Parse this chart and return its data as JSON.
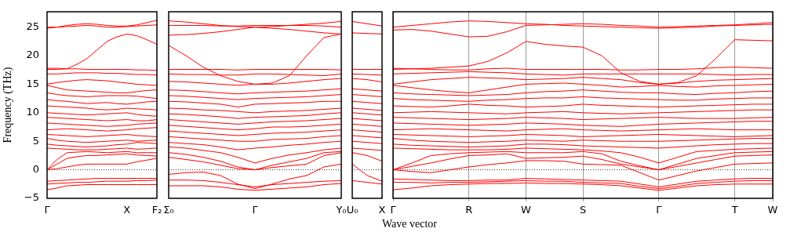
{
  "chart_data": [
    {
      "type": "line",
      "ylabel": "Frequency (THz)",
      "categories": [
        "Γ",
        null,
        null,
        null,
        null,
        null,
        null,
        null,
        "X",
        null,
        null,
        "F₂"
      ],
      "ylim": [
        -5,
        27.7
      ],
      "yticks": [
        {
          "value": -5,
          "label": "−5"
        },
        0,
        5,
        10,
        15,
        20,
        25
      ],
      "marker": "none",
      "ref_lines": [
        {
          "axis": "y",
          "value": 0,
          "line_style": "dotted",
          "color": "#000000"
        }
      ],
      "series": [
        {
          "color": "#ff0000",
          "values": [
            24.8,
            25.0,
            25.3,
            25.5,
            25.6,
            25.5,
            25.3,
            25.2,
            25.2,
            25.4,
            25.8,
            26.2
          ]
        },
        {
          "color": "#ff0000",
          "values": [
            25.0,
            25.0,
            25.1,
            25.2,
            25.3,
            25.2,
            25.0,
            25.0,
            25.1,
            25.2,
            25.3,
            25.4
          ]
        },
        {
          "color": "#ff0000",
          "values": [
            17.6,
            17.6,
            17.7,
            18.5,
            19.5,
            21.0,
            22.5,
            23.3,
            23.8,
            23.5,
            22.8,
            22.0
          ]
        },
        {
          "color": "#ff0000",
          "values": [
            17.8,
            17.8,
            17.7,
            17.7,
            17.6,
            17.6,
            17.6,
            17.6,
            17.6,
            17.5,
            17.5,
            17.4
          ]
        },
        {
          "color": "#ff0000",
          "values": [
            16.8,
            16.8,
            16.9,
            17.0,
            17.0,
            17.0,
            16.9,
            16.9,
            16.8,
            16.7,
            16.7,
            16.6
          ]
        },
        {
          "color": "#ff0000",
          "values": [
            15.0,
            15.3,
            15.5,
            15.7,
            15.8,
            15.7,
            15.6,
            15.4,
            15.2,
            15.0,
            14.9,
            14.8
          ]
        },
        {
          "color": "#ff0000",
          "values": [
            14.8,
            14.4,
            14.0,
            13.9,
            13.8,
            13.7,
            13.6,
            13.5,
            13.5,
            13.7,
            13.9,
            14.0
          ]
        },
        {
          "color": "#ff0000",
          "values": [
            13.5,
            13.2,
            13.0,
            12.9,
            12.8,
            12.9,
            13.0,
            13.0,
            13.0,
            12.9,
            12.7,
            12.5
          ]
        },
        {
          "color": "#ff0000",
          "values": [
            12.3,
            12.1,
            12.0,
            11.8,
            11.6,
            11.7,
            11.8,
            11.6,
            11.5,
            11.7,
            11.9,
            12.0
          ]
        },
        {
          "color": "#ff0000",
          "values": [
            11.2,
            11.1,
            11.0,
            10.9,
            10.8,
            10.6,
            10.5,
            10.6,
            10.8,
            10.7,
            10.6,
            10.5
          ]
        },
        {
          "color": "#ff0000",
          "values": [
            10.0,
            9.9,
            9.8,
            9.7,
            9.6,
            9.7,
            9.8,
            9.9,
            10.0,
            9.7,
            9.5,
            9.4
          ]
        },
        {
          "color": "#ff0000",
          "values": [
            9.2,
            9.1,
            9.0,
            8.9,
            8.8,
            8.7,
            8.6,
            8.7,
            8.8,
            8.6,
            8.6,
            8.8
          ]
        },
        {
          "color": "#ff0000",
          "values": [
            8.2,
            8.1,
            8.0,
            7.9,
            7.8,
            7.7,
            7.6,
            7.7,
            7.8,
            8.0,
            8.1,
            8.2
          ]
        },
        {
          "color": "#ff0000",
          "values": [
            7.0,
            7.1,
            7.2,
            7.1,
            7.0,
            6.9,
            6.8,
            6.9,
            7.0,
            7.2,
            7.3,
            7.4
          ]
        },
        {
          "color": "#ff0000",
          "values": [
            6.2,
            6.1,
            6.0,
            5.9,
            5.8,
            5.9,
            6.0,
            6.1,
            6.2,
            6.0,
            5.9,
            5.8
          ]
        },
        {
          "color": "#ff0000",
          "values": [
            5.5,
            5.2,
            5.0,
            4.9,
            4.8,
            4.9,
            5.0,
            5.1,
            5.2,
            5.0,
            5.1,
            5.2
          ]
        },
        {
          "color": "#ff0000",
          "values": [
            4.5,
            4.3,
            4.2,
            4.1,
            4.0,
            4.1,
            4.2,
            4.4,
            4.5,
            4.8,
            4.7,
            4.6
          ]
        },
        {
          "color": "#ff0000",
          "values": [
            3.8,
            3.7,
            3.6,
            3.5,
            3.5,
            3.5,
            3.6,
            3.7,
            3.8,
            3.6,
            3.7,
            3.8
          ]
        },
        {
          "color": "#ff0000",
          "values": [
            0,
            1.8,
            3.0,
            3.1,
            3.2,
            3.1,
            3.0,
            3.1,
            3.2,
            3.0,
            3.0,
            3.0
          ]
        },
        {
          "color": "#ff0000",
          "values": [
            0,
            1.0,
            2.0,
            2.3,
            2.5,
            2.5,
            2.6,
            2.7,
            2.8,
            2.6,
            2.5,
            2.4
          ]
        },
        {
          "color": "#ff0000",
          "values": [
            0,
            0.2,
            0.5,
            0.8,
            1.0,
            1.0,
            1.0,
            1.0,
            1.0,
            1.4,
            1.7,
            2.0
          ]
        },
        {
          "color": "#ff0000",
          "values": [
            -2.0,
            -1.9,
            -1.8,
            -1.7,
            -1.6,
            -1.5,
            -1.5,
            -1.5,
            -1.5,
            -1.5,
            -1.5,
            -1.5
          ]
        },
        {
          "color": "#ff0000",
          "values": [
            -2.5,
            -2.4,
            -2.3,
            -2.2,
            -2.2,
            -2.1,
            -2.0,
            -2.0,
            -2.0,
            -1.9,
            -1.9,
            -1.8
          ]
        },
        {
          "color": "#ff0000",
          "values": [
            -3.5,
            -3.2,
            -2.8,
            -2.7,
            -2.6,
            -2.6,
            -2.6,
            -2.6,
            -2.6,
            -2.6,
            -2.6,
            -2.6
          ]
        }
      ]
    },
    {
      "type": "line",
      "tick_labels": "x",
      "categories": [
        "Σ₀",
        null,
        null,
        null,
        null,
        "Γ",
        null,
        null,
        null,
        null,
        "Y₀"
      ],
      "ylim": [
        -5,
        27.7
      ],
      "yticks": [
        -5,
        0,
        5,
        10,
        15,
        20,
        25
      ],
      "marker": "none",
      "ref_lines": [
        {
          "axis": "y",
          "value": 0,
          "line_style": "dotted",
          "color": "#000000"
        }
      ],
      "series": [
        {
          "color": "#ff0000",
          "values": [
            26.1,
            25.9,
            25.6,
            25.3,
            25.1,
            25.0,
            25.1,
            25.3,
            25.5,
            25.7,
            26.0
          ]
        },
        {
          "color": "#ff0000",
          "values": [
            25.3,
            25.3,
            25.3,
            25.2,
            25.2,
            25.3,
            25.3,
            25.3,
            25.3,
            25.2,
            25.0
          ]
        },
        {
          "color": "#ff0000",
          "values": [
            23.6,
            23.7,
            23.9,
            24.2,
            24.6,
            25.0,
            24.8,
            24.6,
            24.3,
            24.0,
            23.8
          ]
        },
        {
          "color": "#ff0000",
          "values": [
            21.8,
            20.0,
            18.0,
            16.5,
            15.5,
            15.0,
            15.2,
            16.5,
            20.0,
            23.2,
            23.8
          ]
        },
        {
          "color": "#ff0000",
          "values": [
            17.6,
            17.6,
            17.6,
            17.6,
            17.5,
            17.6,
            17.6,
            17.6,
            17.6,
            17.6,
            17.5
          ]
        },
        {
          "color": "#ff0000",
          "values": [
            16.8,
            16.7,
            16.7,
            16.6,
            16.6,
            16.8,
            16.8,
            16.7,
            16.6,
            16.5,
            16.8
          ]
        },
        {
          "color": "#ff0000",
          "values": [
            15.5,
            15.4,
            15.2,
            15.0,
            14.8,
            15.0,
            15.0,
            15.2,
            15.5,
            15.8,
            16.0
          ]
        },
        {
          "color": "#ff0000",
          "values": [
            14.0,
            13.9,
            13.7,
            13.5,
            13.3,
            13.5,
            13.6,
            13.7,
            13.8,
            14.0,
            14.2
          ]
        },
        {
          "color": "#ff0000",
          "values": [
            13.0,
            12.9,
            12.7,
            12.5,
            12.3,
            12.5,
            12.6,
            12.7,
            12.8,
            13.0,
            13.2
          ]
        },
        {
          "color": "#ff0000",
          "values": [
            12.0,
            11.9,
            11.7,
            11.5,
            11.0,
            11.5,
            11.6,
            11.7,
            11.8,
            12.0,
            12.0
          ]
        },
        {
          "color": "#ff0000",
          "values": [
            10.8,
            10.7,
            10.5,
            10.4,
            10.2,
            10.0,
            10.2,
            10.3,
            10.4,
            10.6,
            10.8
          ]
        },
        {
          "color": "#ff0000",
          "values": [
            9.8,
            9.7,
            9.5,
            9.3,
            9.0,
            9.2,
            9.3,
            9.4,
            9.5,
            9.8,
            10.0
          ]
        },
        {
          "color": "#ff0000",
          "values": [
            8.8,
            8.6,
            8.4,
            8.2,
            8.0,
            8.2,
            8.4,
            8.5,
            8.6,
            8.8,
            9.0
          ]
        },
        {
          "color": "#ff0000",
          "values": [
            7.8,
            7.6,
            7.4,
            7.2,
            7.0,
            7.2,
            7.5,
            7.5,
            7.6,
            7.8,
            8.0
          ]
        },
        {
          "color": "#ff0000",
          "values": [
            6.8,
            6.6,
            6.4,
            6.2,
            6.0,
            6.2,
            6.4,
            6.5,
            6.6,
            6.8,
            7.0
          ]
        },
        {
          "color": "#ff0000",
          "values": [
            5.8,
            5.6,
            5.4,
            5.2,
            5.0,
            5.0,
            5.3,
            5.4,
            5.5,
            5.8,
            6.0
          ]
        },
        {
          "color": "#ff0000",
          "values": [
            4.8,
            4.6,
            4.4,
            4.0,
            3.5,
            3.8,
            4.0,
            4.3,
            4.5,
            4.8,
            5.0
          ]
        },
        {
          "color": "#ff0000",
          "values": [
            4.0,
            3.8,
            3.4,
            3.0,
            2.2,
            1.2,
            2.0,
            2.6,
            3.0,
            3.5,
            3.8
          ]
        },
        {
          "color": "#ff0000",
          "values": [
            3.0,
            2.7,
            2.2,
            1.5,
            0.5,
            0,
            0.8,
            1.4,
            2.0,
            3.0,
            3.2
          ]
        },
        {
          "color": "#ff0000",
          "values": [
            2.2,
            1.8,
            1.4,
            0.8,
            0.2,
            0,
            0.4,
            0.7,
            1.0,
            2.5,
            3.0
          ]
        },
        {
          "color": "#ff0000",
          "values": [
            -0.8,
            -0.5,
            -0.4,
            -1.0,
            -2.5,
            -3.3,
            -2.5,
            -1.6,
            -1.0,
            0.5,
            1.0
          ]
        },
        {
          "color": "#ff0000",
          "values": [
            -1.8,
            -1.8,
            -1.9,
            -2.2,
            -2.6,
            -3.0,
            -2.6,
            -2.4,
            -2.2,
            -2.0,
            -1.9
          ]
        },
        {
          "color": "#ff0000",
          "values": [
            -2.8,
            -2.8,
            -2.8,
            -3.0,
            -3.4,
            -3.6,
            -3.4,
            -3.2,
            -3.0,
            -2.6,
            -2.4
          ]
        }
      ]
    },
    {
      "type": "line",
      "tick_labels": "x",
      "categories": [
        "U₀",
        null,
        "X"
      ],
      "ylim": [
        -5,
        27.7
      ],
      "yticks": [
        -5,
        0,
        5,
        10,
        15,
        20,
        25
      ],
      "marker": "none",
      "ref_lines": [
        {
          "axis": "y",
          "value": 0,
          "line_style": "dotted",
          "color": "#000000"
        }
      ],
      "series": [
        {
          "color": "#ff0000",
          "values": [
            26.0,
            25.6,
            25.2
          ]
        },
        {
          "color": "#ff0000",
          "values": [
            24.0,
            23.9,
            23.8
          ]
        },
        {
          "color": "#ff0000",
          "values": [
            17.6,
            17.6,
            17.6
          ]
        },
        {
          "color": "#ff0000",
          "values": [
            16.8,
            16.7,
            16.6
          ]
        },
        {
          "color": "#ff0000",
          "values": [
            16.0,
            15.8,
            15.4
          ]
        },
        {
          "color": "#ff0000",
          "values": [
            14.2,
            14.0,
            13.8
          ]
        },
        {
          "color": "#ff0000",
          "values": [
            13.2,
            13.0,
            12.8
          ]
        },
        {
          "color": "#ff0000",
          "values": [
            12.0,
            11.8,
            11.6
          ]
        },
        {
          "color": "#ff0000",
          "values": [
            10.8,
            10.6,
            10.4
          ]
        },
        {
          "color": "#ff0000",
          "values": [
            10.0,
            9.8,
            9.6
          ]
        },
        {
          "color": "#ff0000",
          "values": [
            9.0,
            8.8,
            8.6
          ]
        },
        {
          "color": "#ff0000",
          "values": [
            8.0,
            7.8,
            7.6
          ]
        },
        {
          "color": "#ff0000",
          "values": [
            7.0,
            6.8,
            6.6
          ]
        },
        {
          "color": "#ff0000",
          "values": [
            6.0,
            5.8,
            5.6
          ]
        },
        {
          "color": "#ff0000",
          "values": [
            5.0,
            4.8,
            4.6
          ]
        },
        {
          "color": "#ff0000",
          "values": [
            3.8,
            3.6,
            3.4
          ]
        },
        {
          "color": "#ff0000",
          "values": [
            3.0,
            2.5,
            1.5
          ]
        },
        {
          "color": "#ff0000",
          "values": [
            1.0,
            -1.0,
            -2.0
          ]
        },
        {
          "color": "#ff0000",
          "values": [
            -1.9,
            -2.2,
            -2.5
          ]
        }
      ]
    },
    {
      "type": "line",
      "tick_labels": "x",
      "xlabel": "Wave vector",
      "categories": [
        "Γ",
        null,
        null,
        null,
        "R",
        null,
        null,
        "W",
        null,
        null,
        "S",
        null,
        null,
        null,
        "Γ",
        null,
        null,
        null,
        "T",
        null,
        "W"
      ],
      "ylim": [
        -5,
        27.7
      ],
      "yticks": [
        -5,
        0,
        5,
        10,
        15,
        20,
        25
      ],
      "grid": "x",
      "marker": "none",
      "ref_lines": [
        {
          "axis": "y",
          "value": 0,
          "line_style": "dotted",
          "color": "#000000"
        }
      ],
      "series": [
        {
          "color": "#ff0000",
          "values": [
            25.0,
            25.3,
            25.6,
            25.9,
            26.1,
            26.0,
            25.8,
            25.6,
            25.5,
            25.3,
            25.2,
            25.1,
            25.0,
            24.9,
            24.8,
            24.9,
            25.0,
            25.2,
            25.3,
            25.4,
            25.5
          ]
        },
        {
          "color": "#ff0000",
          "values": [
            24.5,
            24.6,
            24.3,
            23.8,
            23.3,
            23.4,
            24.2,
            25.3,
            25.4,
            25.5,
            25.6,
            25.5,
            25.3,
            25.2,
            25.0,
            25.1,
            25.2,
            25.3,
            25.4,
            25.6,
            25.8
          ]
        },
        {
          "color": "#ff0000",
          "values": [
            17.6,
            17.7,
            17.8,
            18.0,
            18.2,
            19.0,
            20.5,
            22.5,
            22.0,
            21.7,
            21.5,
            20.0,
            17.0,
            15.5,
            15.0,
            15.3,
            16.5,
            19.5,
            22.8,
            22.7,
            22.6
          ]
        },
        {
          "color": "#ff0000",
          "values": [
            17.8,
            17.7,
            17.6,
            17.5,
            17.5,
            17.7,
            17.8,
            17.6,
            17.6,
            17.6,
            17.6,
            17.6,
            17.5,
            17.5,
            17.6,
            17.6,
            17.7,
            17.9,
            18.0,
            17.9,
            17.8
          ]
        },
        {
          "color": "#ff0000",
          "values": [
            16.8,
            16.9,
            17.0,
            17.1,
            17.2,
            17.1,
            17.0,
            16.8,
            16.7,
            16.6,
            16.8,
            16.8,
            16.8,
            16.8,
            16.8,
            16.8,
            16.8,
            16.7,
            16.6,
            16.7,
            16.7
          ]
        },
        {
          "color": "#ff0000",
          "values": [
            15.0,
            15.4,
            15.8,
            16.0,
            16.2,
            16.1,
            16.0,
            15.8,
            15.9,
            16.0,
            16.2,
            16.0,
            15.8,
            15.3,
            15.0,
            15.2,
            15.5,
            15.7,
            15.8,
            15.9,
            16.0
          ]
        },
        {
          "color": "#ff0000",
          "values": [
            14.8,
            14.4,
            14.0,
            13.7,
            13.5,
            14.0,
            14.5,
            15.0,
            15.1,
            15.2,
            15.0,
            14.8,
            14.5,
            14.6,
            14.8,
            14.6,
            14.5,
            14.7,
            14.8,
            14.9,
            15.0
          ]
        },
        {
          "color": "#ff0000",
          "values": [
            13.5,
            13.3,
            13.2,
            13.1,
            13.0,
            13.1,
            13.2,
            13.5,
            13.7,
            13.8,
            14.0,
            13.8,
            13.6,
            13.5,
            13.5,
            13.3,
            13.2,
            13.4,
            13.5,
            13.7,
            13.8
          ]
        },
        {
          "color": "#ff0000",
          "values": [
            12.5,
            12.3,
            12.2,
            12.1,
            12.0,
            12.2,
            12.3,
            12.5,
            12.6,
            12.6,
            12.8,
            12.6,
            12.5,
            12.4,
            12.3,
            12.2,
            12.2,
            12.4,
            12.5,
            12.6,
            12.6
          ]
        },
        {
          "color": "#ff0000",
          "values": [
            11.2,
            11.1,
            11.0,
            11.2,
            11.5,
            11.3,
            11.2,
            11.0,
            11.1,
            11.2,
            11.5,
            11.3,
            11.2,
            11.1,
            11.0,
            11.1,
            11.2,
            11.3,
            11.4,
            11.5,
            11.5
          ]
        },
        {
          "color": "#ff0000",
          "values": [
            10.0,
            10.1,
            10.2,
            10.1,
            10.0,
            9.9,
            9.8,
            10.0,
            10.1,
            10.2,
            10.0,
            9.9,
            9.8,
            9.9,
            10.0,
            10.1,
            10.2,
            10.3,
            10.4,
            10.5,
            10.5
          ]
        },
        {
          "color": "#ff0000",
          "values": [
            9.2,
            9.1,
            9.0,
            8.9,
            8.8,
            8.9,
            9.0,
            9.2,
            9.1,
            9.0,
            8.8,
            8.9,
            9.0,
            9.1,
            9.2,
            9.1,
            9.0,
            9.0,
            9.0,
            9.1,
            9.2
          ]
        },
        {
          "color": "#ff0000",
          "values": [
            8.2,
            8.1,
            8.0,
            7.9,
            7.8,
            7.9,
            8.0,
            8.2,
            8.1,
            8.0,
            7.8,
            7.7,
            7.6,
            7.8,
            8.0,
            8.1,
            8.2,
            8.3,
            8.4,
            8.5,
            8.5
          ]
        },
        {
          "color": "#ff0000",
          "values": [
            7.0,
            7.1,
            7.2,
            7.1,
            7.0,
            6.9,
            6.8,
            7.0,
            7.1,
            7.2,
            7.0,
            6.9,
            6.8,
            6.9,
            7.0,
            7.1,
            7.2,
            7.1,
            7.0,
            7.0,
            7.0
          ]
        },
        {
          "color": "#ff0000",
          "values": [
            6.2,
            6.1,
            6.0,
            5.9,
            5.8,
            5.9,
            6.0,
            6.2,
            6.1,
            6.0,
            5.8,
            5.9,
            6.0,
            6.1,
            6.2,
            6.1,
            6.0,
            5.9,
            5.8,
            5.9,
            6.0
          ]
        },
        {
          "color": "#ff0000",
          "values": [
            5.5,
            5.2,
            5.0,
            4.9,
            4.8,
            4.9,
            5.0,
            5.2,
            5.1,
            5.0,
            5.2,
            5.1,
            5.0,
            5.0,
            5.0,
            5.1,
            5.2,
            5.3,
            5.4,
            5.5,
            5.5
          ]
        },
        {
          "color": "#ff0000",
          "values": [
            4.5,
            4.3,
            4.2,
            4.1,
            4.0,
            4.1,
            4.2,
            4.5,
            4.5,
            4.4,
            4.2,
            4.1,
            4.0,
            3.9,
            3.8,
            4.0,
            4.2,
            4.4,
            4.5,
            4.6,
            4.6
          ]
        },
        {
          "color": "#ff0000",
          "values": [
            3.8,
            3.7,
            3.6,
            3.5,
            3.5,
            3.5,
            3.6,
            3.8,
            3.7,
            3.6,
            3.5,
            3.3,
            3.0,
            2.2,
            1.2,
            2.2,
            3.2,
            3.4,
            3.6,
            3.7,
            3.8
          ]
        },
        {
          "color": "#ff0000",
          "values": [
            0,
            1.2,
            2.5,
            2.8,
            3.0,
            3.1,
            3.2,
            3.0,
            3.0,
            3.0,
            3.2,
            2.8,
            1.5,
            0.7,
            0,
            1.0,
            2.0,
            2.5,
            3.0,
            3.1,
            3.2
          ]
        },
        {
          "color": "#ff0000",
          "values": [
            0,
            0.6,
            1.2,
            1.9,
            2.5,
            2.6,
            2.8,
            2.0,
            2.1,
            2.2,
            2.4,
            1.8,
            1.0,
            0.5,
            0,
            0.6,
            1.2,
            1.8,
            2.4,
            2.5,
            2.6
          ]
        },
        {
          "color": "#ff0000",
          "values": [
            0,
            -0.3,
            -0.5,
            0,
            0.5,
            0.9,
            1.2,
            1.6,
            1.6,
            1.5,
            1.0,
            0.9,
            0.8,
            -0.5,
            -1.8,
            -1.0,
            -0.2,
            0.4,
            1.0,
            1.1,
            1.2
          ]
        },
        {
          "color": "#ff0000",
          "values": [
            -1.6,
            -1.7,
            -1.8,
            -1.9,
            -1.9,
            -1.8,
            -1.8,
            -1.5,
            -1.6,
            -1.7,
            -1.8,
            -1.9,
            -2.0,
            -2.5,
            -3.0,
            -2.5,
            -2.0,
            -1.8,
            -1.6,
            -1.5,
            -1.5
          ]
        },
        {
          "color": "#ff0000",
          "values": [
            -2.2,
            -2.2,
            -2.3,
            -2.2,
            -2.2,
            -2.1,
            -2.0,
            -1.9,
            -2.0,
            -2.0,
            -2.2,
            -2.3,
            -2.4,
            -2.9,
            -3.3,
            -2.9,
            -2.4,
            -2.2,
            -2.0,
            -1.9,
            -1.9
          ]
        },
        {
          "color": "#ff0000",
          "values": [
            -3.5,
            -3.2,
            -2.8,
            -2.6,
            -2.5,
            -2.4,
            -2.4,
            -2.3,
            -2.4,
            -2.4,
            -2.5,
            -2.6,
            -2.8,
            -3.2,
            -3.6,
            -3.2,
            -2.8,
            -2.6,
            -2.5,
            -2.5,
            -2.5
          ]
        }
      ]
    }
  ]
}
